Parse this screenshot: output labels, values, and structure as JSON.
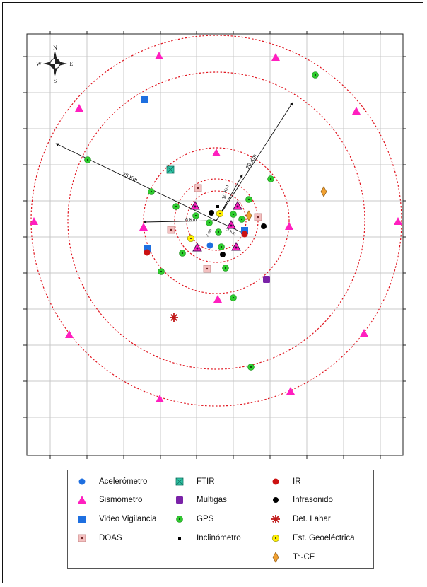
{
  "colors": {
    "ring": "#e0151f",
    "grid": "#c8c8c8",
    "sismometro": "#ff1fbf",
    "gps": "#2ecc2e",
    "video": "#1e6fe0",
    "ftir": "#2ec4a6",
    "ir": "#cc1111",
    "multigas": "#7a22a8",
    "infrasonido": "#000000",
    "lahar": "#c01818",
    "geoelectrica": "#ffef00",
    "tce": "#f0a030",
    "doas": "#f4c0c0",
    "acelerometro": "#1e6fe0"
  },
  "north_arrow": {
    "n": "N",
    "s": "S",
    "e": "E",
    "w": "W"
  },
  "ring_labels": {
    "r25": "25 Km",
    "r20": "20 Km",
    "r10": "10 Km",
    "r6": "6 Km",
    "r3": "3 Km",
    "r2": "2 Km"
  },
  "legend": [
    {
      "id": "acelerometro",
      "label": "Acelerómetro",
      "icon": "blue-circle-icon"
    },
    {
      "id": "ftir",
      "label": "FTIR",
      "icon": "teal-crossed-square-icon"
    },
    {
      "id": "ir",
      "label": "IR",
      "icon": "red-circle-icon"
    },
    {
      "id": "sismometro",
      "label": "Sismómetro",
      "icon": "magenta-triangle-icon"
    },
    {
      "id": "multigas",
      "label": "Multigas",
      "icon": "purple-square-icon"
    },
    {
      "id": "infrasonido",
      "label": "Infrasonido",
      "icon": "black-circle-icon"
    },
    {
      "id": "video",
      "label": "Video Vigilancia",
      "icon": "blue-square-icon"
    },
    {
      "id": "gps",
      "label": "GPS",
      "icon": "green-dot-circle-icon"
    },
    {
      "id": "lahar",
      "label": "Det. Lahar",
      "icon": "red-asterisk-icon"
    },
    {
      "id": "doas",
      "label": "DOAS",
      "icon": "pink-dot-square-icon"
    },
    {
      "id": "inclinometro",
      "label": "Inclinómetro",
      "icon": "black-small-square-icon"
    },
    {
      "id": "geoelectrica",
      "label": "Est. Geoeléctrica",
      "icon": "yellow-dot-circle-icon"
    },
    {
      "id": "tce",
      "label": "T°-CE",
      "icon": "orange-diamond-icon"
    }
  ]
}
